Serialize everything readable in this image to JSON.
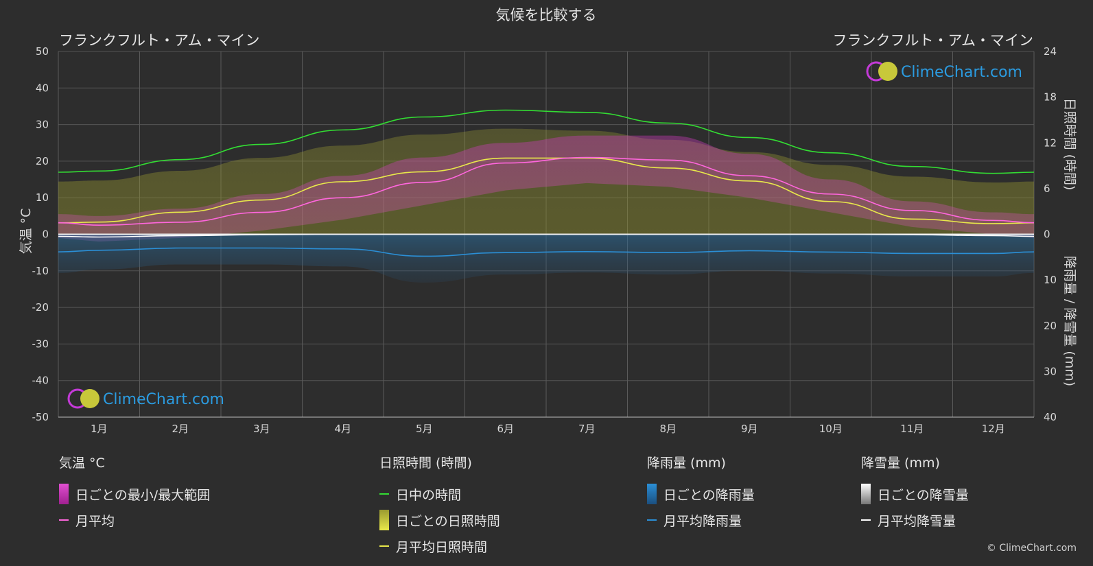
{
  "chart_data": {
    "type": "area",
    "title": "気候を比較する",
    "location_left": "フランクフルト・アム・マイン",
    "location_right": "フランクフルト・アム・マイン",
    "watermark": "ClimeChart.com",
    "categories": [
      "1月",
      "2月",
      "3月",
      "4月",
      "5月",
      "6月",
      "7月",
      "8月",
      "9月",
      "10月",
      "11月",
      "12月"
    ],
    "axes": {
      "left": {
        "label": "気温 °C",
        "range": [
          -50,
          50
        ],
        "ticks": [
          "50",
          "40",
          "30",
          "20",
          "10",
          "0",
          "-10",
          "-20",
          "-30",
          "-40",
          "-50"
        ]
      },
      "right_top": {
        "label": "日照時間 (時間)",
        "range": [
          0,
          24
        ],
        "ticks": [
          "24",
          "18",
          "12",
          "6",
          "0"
        ]
      },
      "right_bottom": {
        "label": "降雨量 / 降雪量 (mm)",
        "range": [
          0,
          40
        ],
        "ticks": [
          "10",
          "20",
          "30",
          "40"
        ]
      }
    },
    "series": [
      {
        "name": "日中の時間",
        "unit": "hours",
        "color": "#33dd33",
        "values": [
          8.3,
          9.8,
          11.8,
          13.7,
          15.4,
          16.3,
          16.0,
          14.6,
          12.7,
          10.7,
          8.9,
          8.0
        ]
      },
      {
        "name": "月平均日照時間",
        "unit": "hours",
        "color": "#e8e84a",
        "values": [
          1.6,
          2.9,
          4.5,
          6.9,
          8.2,
          10.0,
          10.0,
          8.7,
          7.0,
          4.3,
          2.0,
          1.4
        ]
      },
      {
        "name": "月平均",
        "unit": "°C",
        "color": "#ff66dd",
        "values": [
          2.5,
          3.3,
          6.0,
          10.0,
          14.2,
          19.5,
          21.0,
          20.3,
          16.0,
          11.0,
          6.5,
          3.8
        ]
      },
      {
        "name": "月平均降雨量",
        "unit": "mm",
        "color": "#2b8fd6",
        "values": [
          3.5,
          3.0,
          3.0,
          3.2,
          4.8,
          4.0,
          3.8,
          4.0,
          3.6,
          3.9,
          4.2,
          4.2
        ]
      },
      {
        "name": "月平均降雪量",
        "unit": "mm",
        "color": "#ffffff",
        "values": [
          0.6,
          0.3,
          0.1,
          0,
          0,
          0,
          0,
          0,
          0,
          0,
          0.1,
          0.3
        ]
      }
    ],
    "temp_range": {
      "name": "日ごとの最小/最大範囲",
      "min": [
        -2,
        -1,
        1,
        4,
        8,
        12,
        14,
        13,
        10,
        6,
        2,
        0
      ],
      "max": [
        5,
        7,
        11,
        16,
        21,
        25,
        27,
        27,
        22,
        15,
        9,
        6
      ]
    },
    "grid": true
  },
  "legend": {
    "temp": {
      "header": "気温 °C",
      "range": "日ごとの最小/最大範囲",
      "avg": "月平均"
    },
    "sun": {
      "header": "日照時間 (時間)",
      "daylight": "日中の時間",
      "daily": "日ごとの日照時間",
      "avg": "月平均日照時間"
    },
    "rain": {
      "header": "降雨量 (mm)",
      "daily": "日ごとの降雨量",
      "avg": "月平均降雨量"
    },
    "snow": {
      "header": "降雪量 (mm)",
      "daily": "日ごとの降雪量",
      "avg": "月平均降雪量"
    }
  },
  "colors": {
    "background": "#2d2d2d",
    "grid": "#5a5a5a",
    "daylight": "#33dd33",
    "sunshine": "#e8e84a",
    "temp": "#ff66dd",
    "rain": "#2b8fd6",
    "snow": "#ffffff",
    "brand": "#2b9be0"
  },
  "copyright": "© ClimeChart.com"
}
